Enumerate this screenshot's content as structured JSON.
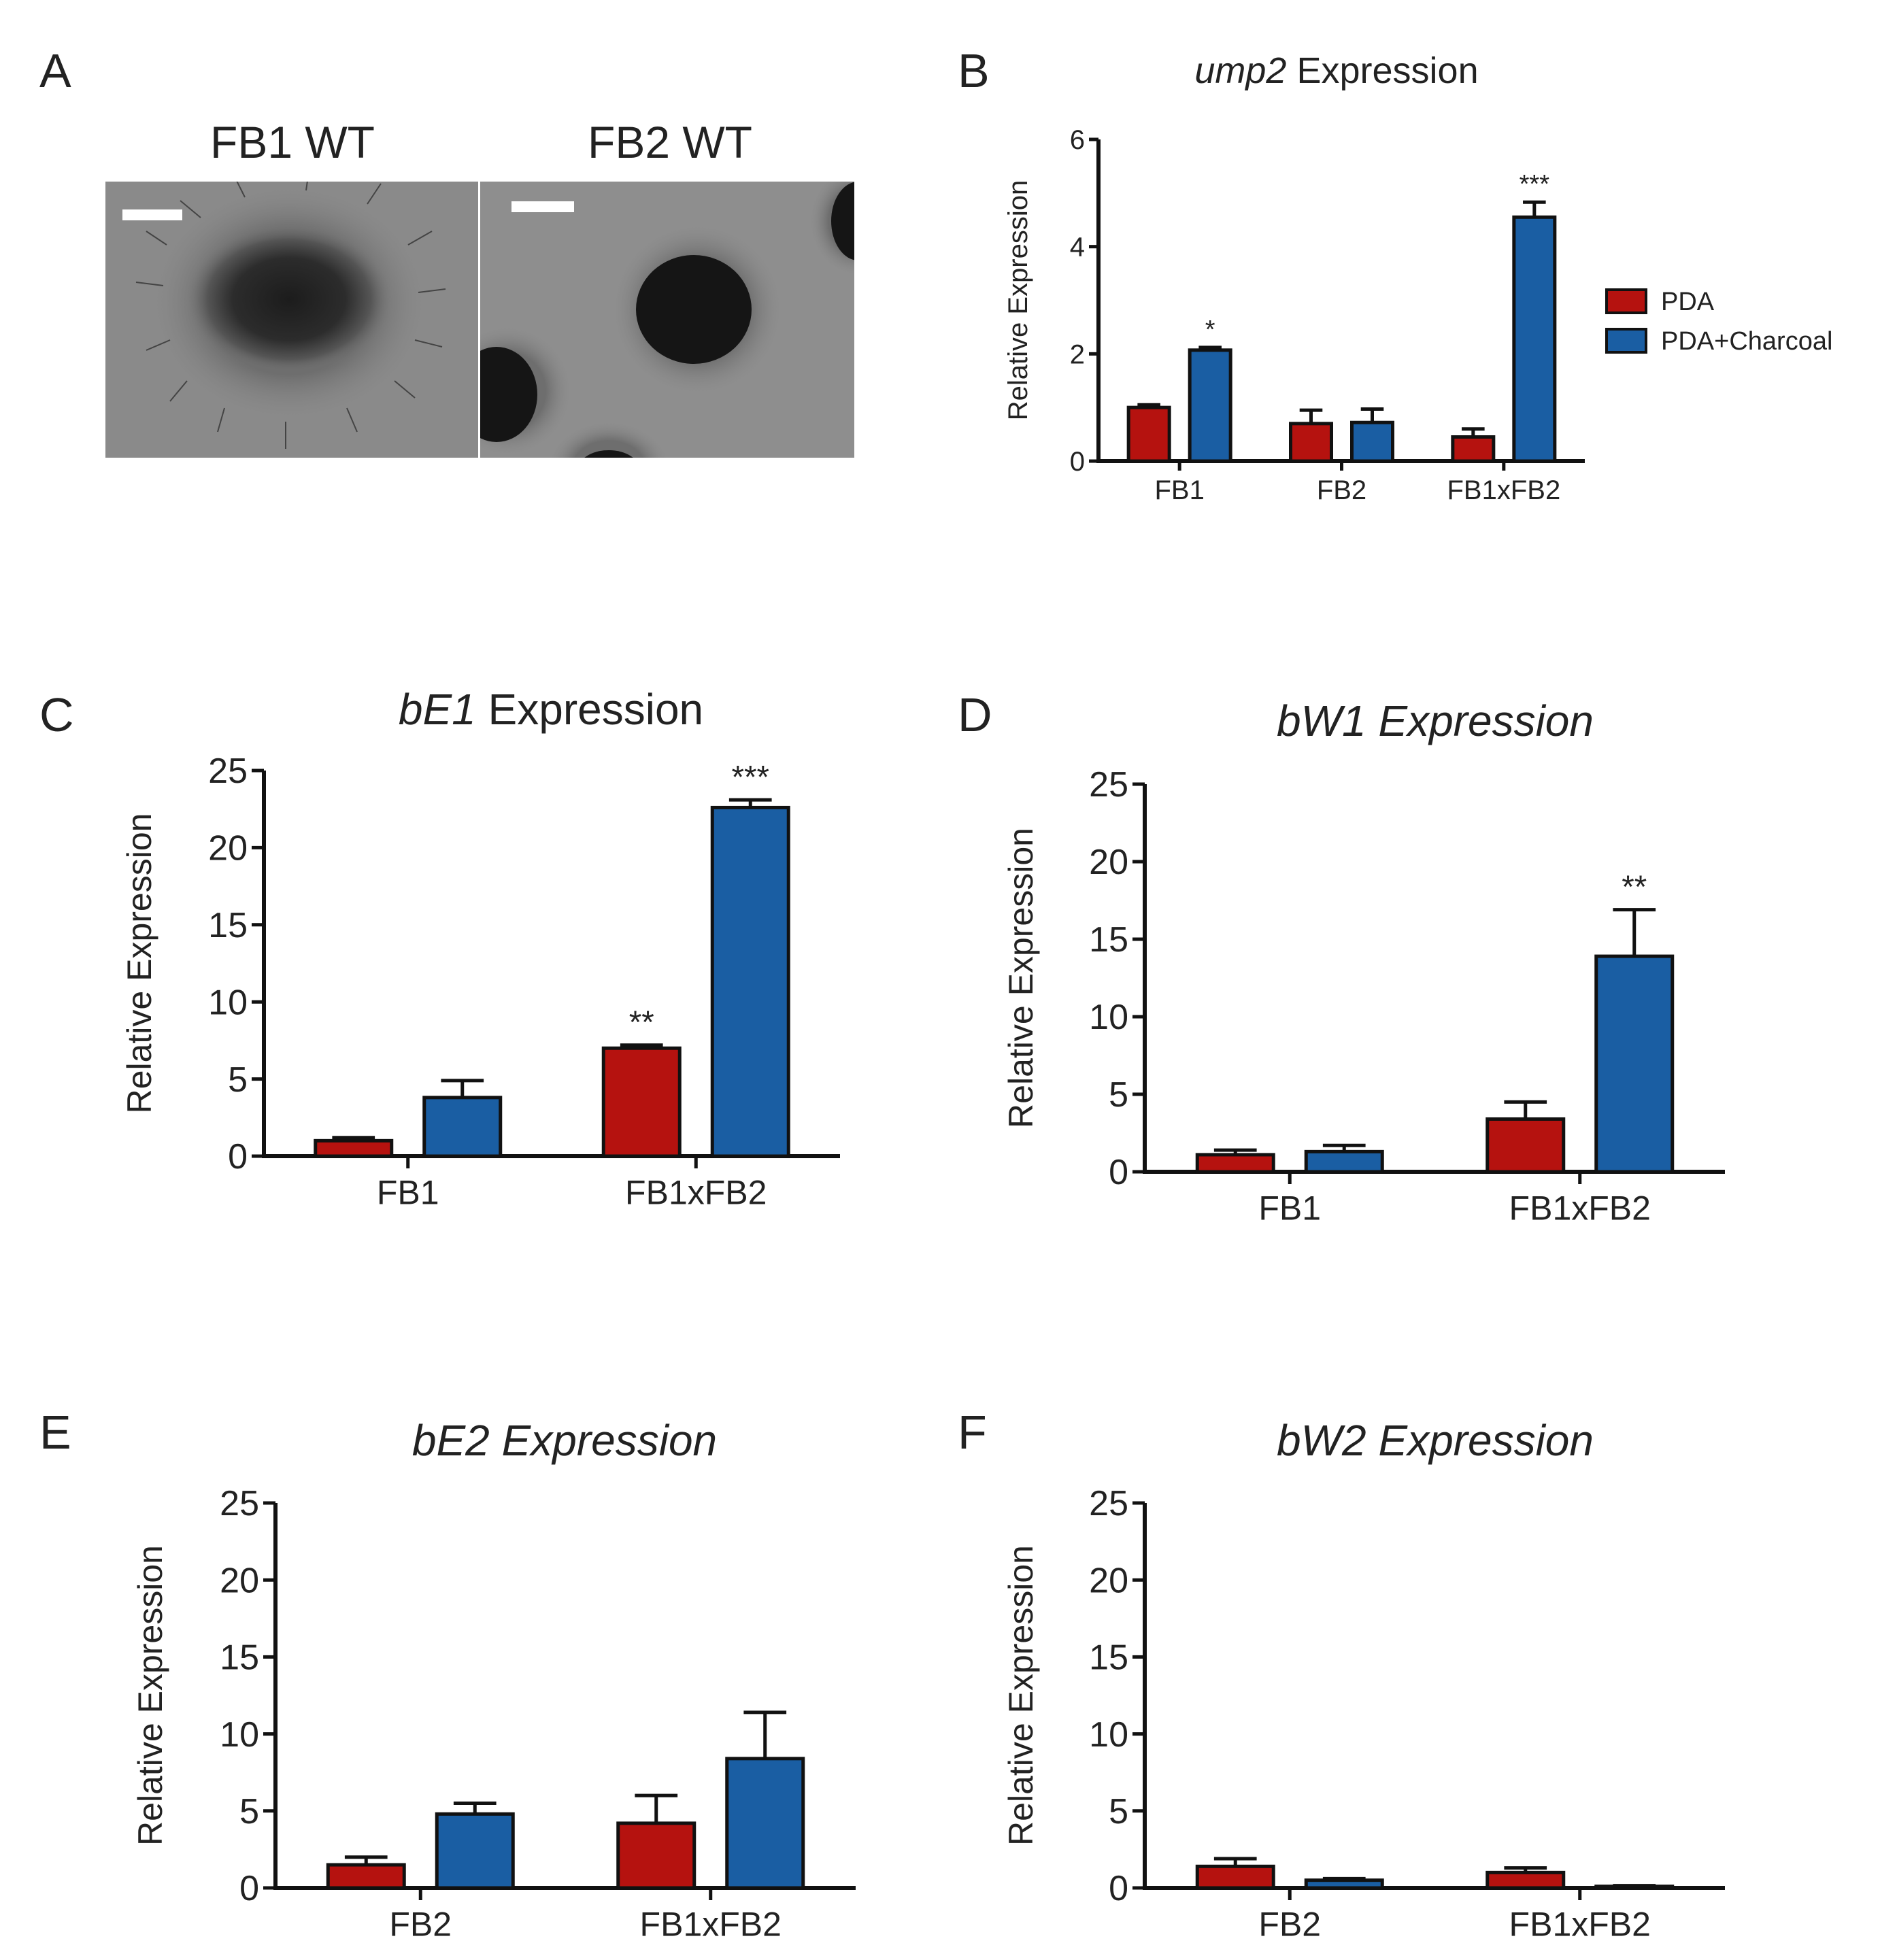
{
  "figure": {
    "panel_letters": [
      "A",
      "B",
      "C",
      "D",
      "E",
      "F"
    ],
    "colors": {
      "pda": "#b5120f",
      "charcoal": "#1a5ea3",
      "axis": "#111111",
      "text": "#222222",
      "photo_bg": "#888888",
      "photo_dark": "#111111"
    }
  },
  "micrograph": {
    "label_left": "FB1 WT",
    "label_right": "FB2 WT"
  },
  "legend": {
    "items": [
      {
        "label": "PDA",
        "color": "#b5120f"
      },
      {
        "label": "PDA+Charcoal",
        "color": "#1a5ea3"
      }
    ]
  },
  "chart_data": [
    {
      "panel": "B",
      "type": "bar",
      "title_italic": "ump2",
      "title_rest": " Expression",
      "ylabel": "Relative Expression",
      "xlabel": "",
      "ylim": [
        0,
        6
      ],
      "yticks": [
        0,
        2,
        4,
        6
      ],
      "categories": [
        "FB1",
        "FB2",
        "FB1xFB2"
      ],
      "series": [
        {
          "name": "PDA",
          "values": [
            1.0,
            0.7,
            0.45
          ],
          "errors": [
            0.05,
            0.25,
            0.15
          ],
          "annotations": [
            "",
            "",
            ""
          ]
        },
        {
          "name": "PDA+Charcoal",
          "values": [
            2.07,
            0.72,
            4.55
          ],
          "errors": [
            0.05,
            0.25,
            0.28
          ],
          "annotations": [
            "*",
            "",
            "***"
          ]
        }
      ],
      "legend": "right"
    },
    {
      "panel": "C",
      "type": "bar",
      "title_italic": "bE1",
      "title_rest": " Expression",
      "ylabel": "Relative Expression",
      "xlabel": "",
      "ylim": [
        0,
        25
      ],
      "yticks": [
        0,
        5,
        10,
        15,
        20,
        25
      ],
      "categories": [
        "FB1",
        "FB1xFB2"
      ],
      "series": [
        {
          "name": "PDA",
          "values": [
            1.0,
            7.0
          ],
          "errors": [
            0.2,
            0.2
          ],
          "annotations": [
            "",
            "**"
          ]
        },
        {
          "name": "PDA+Charcoal",
          "values": [
            3.8,
            22.6
          ],
          "errors": [
            1.1,
            0.5
          ],
          "annotations": [
            "",
            "***"
          ]
        }
      ]
    },
    {
      "panel": "D",
      "type": "bar",
      "title_italic": "bW1 Expression",
      "title_rest": "",
      "ylabel": "Relative Expression",
      "xlabel": "",
      "ylim": [
        0,
        25
      ],
      "yticks": [
        0,
        5,
        10,
        15,
        20,
        25
      ],
      "categories": [
        "FB1",
        "FB1xFB2"
      ],
      "series": [
        {
          "name": "PDA",
          "values": [
            1.1,
            3.4
          ],
          "errors": [
            0.3,
            1.1
          ],
          "annotations": [
            "",
            ""
          ]
        },
        {
          "name": "PDA+Charcoal",
          "values": [
            1.3,
            13.9
          ],
          "errors": [
            0.4,
            3.0
          ],
          "annotations": [
            "",
            "**"
          ]
        }
      ]
    },
    {
      "panel": "E",
      "type": "bar",
      "title_italic": "bE2 Expression",
      "title_rest": "",
      "ylabel": "Relative Expression",
      "xlabel": "",
      "ylim": [
        0,
        25
      ],
      "yticks": [
        0,
        5,
        10,
        15,
        20,
        25
      ],
      "categories": [
        "FB2",
        "FB1xFB2"
      ],
      "series": [
        {
          "name": "PDA",
          "values": [
            1.5,
            4.2
          ],
          "errors": [
            0.5,
            1.8
          ],
          "annotations": [
            "",
            ""
          ]
        },
        {
          "name": "PDA+Charcoal",
          "values": [
            4.8,
            8.4
          ],
          "errors": [
            0.7,
            3.0
          ],
          "annotations": [
            "",
            ""
          ]
        }
      ]
    },
    {
      "panel": "F",
      "type": "bar",
      "title_italic": "bW2 Expression",
      "title_rest": "",
      "ylabel": "Relative Expression",
      "xlabel": "",
      "ylim": [
        0,
        25
      ],
      "yticks": [
        0,
        5,
        10,
        15,
        20,
        25
      ],
      "categories": [
        "FB2",
        "FB1xFB2"
      ],
      "series": [
        {
          "name": "PDA",
          "values": [
            1.4,
            1.0
          ],
          "errors": [
            0.5,
            0.3
          ],
          "annotations": [
            "",
            ""
          ]
        },
        {
          "name": "PDA+Charcoal",
          "values": [
            0.5,
            0.1
          ],
          "errors": [
            0.1,
            0.05
          ],
          "annotations": [
            "",
            ""
          ]
        }
      ]
    }
  ]
}
